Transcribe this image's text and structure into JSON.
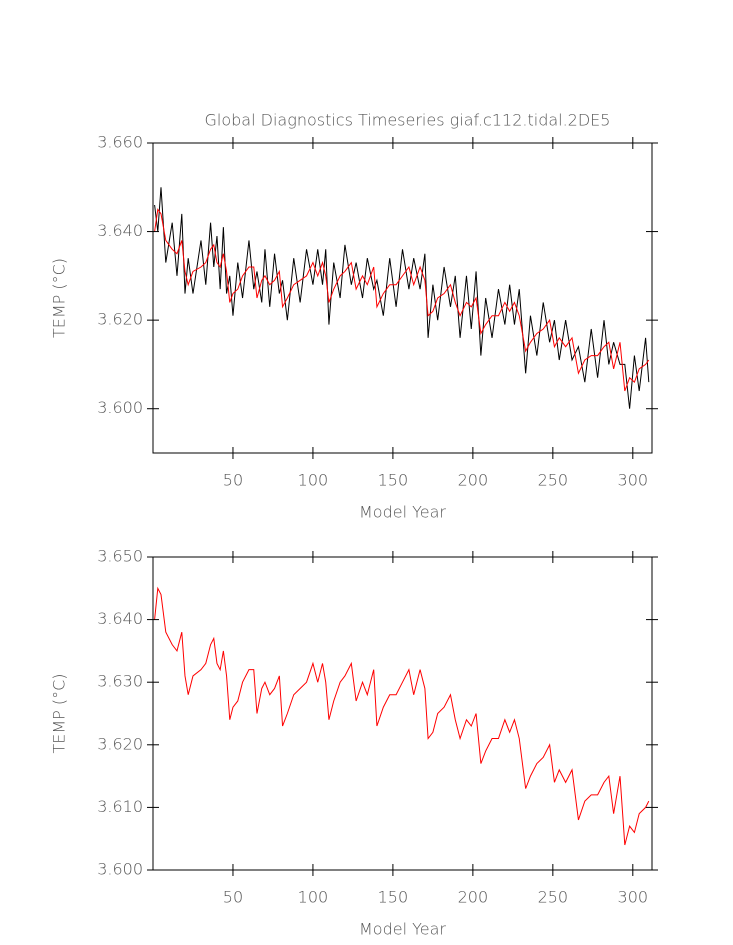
{
  "chart_data": [
    {
      "type": "line",
      "title": "Global Diagnostics Timeseries giaf.c112.tidal.2DE5",
      "x_label": "Model Year",
      "y_label": "TEMP (°C)",
      "xlim": [
        0,
        312
      ],
      "xticks": [
        50,
        100,
        150,
        200,
        250,
        300
      ],
      "ylim": [
        3.59,
        3.66
      ],
      "yticks": [
        {
          "value": 3.6,
          "label": "3.600"
        },
        {
          "value": 3.62,
          "label": "3.620"
        },
        {
          "value": 3.64,
          "label": "3.640"
        },
        {
          "value": 3.66,
          "label": "3.660"
        }
      ],
      "x": [
        1,
        3,
        5,
        8,
        12,
        15,
        18,
        20,
        22,
        25,
        30,
        33,
        36,
        38,
        40,
        42,
        44,
        46,
        48,
        50,
        53,
        56,
        60,
        63,
        65,
        68,
        70,
        73,
        76,
        79,
        81,
        84,
        88,
        92,
        96,
        100,
        103,
        106,
        108,
        110,
        113,
        117,
        120,
        124,
        127,
        131,
        134,
        138,
        140,
        144,
        148,
        152,
        156,
        160,
        163,
        167,
        170,
        172,
        175,
        178,
        182,
        186,
        189,
        192,
        196,
        199,
        202,
        205,
        208,
        212,
        216,
        220,
        223,
        226,
        229,
        233,
        236,
        240,
        244,
        248,
        251,
        254,
        258,
        262,
        266,
        270,
        274,
        278,
        282,
        285,
        288,
        292,
        295,
        298,
        301,
        304,
        308,
        310
      ],
      "series": [
        {
          "color": "#000000",
          "values": [
            3.646,
            3.64,
            3.65,
            3.633,
            3.642,
            3.63,
            3.644,
            3.626,
            3.634,
            3.626,
            3.638,
            3.628,
            3.642,
            3.632,
            3.639,
            3.627,
            3.641,
            3.626,
            3.63,
            3.621,
            3.633,
            3.625,
            3.638,
            3.627,
            3.631,
            3.624,
            3.636,
            3.623,
            3.635,
            3.626,
            3.629,
            3.62,
            3.634,
            3.624,
            3.636,
            3.628,
            3.636,
            3.628,
            3.636,
            3.619,
            3.633,
            3.625,
            3.637,
            3.628,
            3.633,
            3.625,
            3.634,
            3.627,
            3.629,
            3.621,
            3.634,
            3.623,
            3.636,
            3.627,
            3.634,
            3.627,
            3.635,
            3.616,
            3.628,
            3.62,
            3.632,
            3.623,
            3.63,
            3.616,
            3.63,
            3.618,
            3.631,
            3.612,
            3.625,
            3.616,
            3.627,
            3.619,
            3.628,
            3.619,
            3.627,
            3.608,
            3.621,
            3.612,
            3.624,
            3.615,
            3.62,
            3.611,
            3.62,
            3.611,
            3.614,
            3.606,
            3.618,
            3.607,
            3.62,
            3.61,
            3.615,
            3.61,
            3.61,
            3.6,
            3.612,
            3.604,
            3.616,
            3.606
          ]
        },
        {
          "color": "#ff0000",
          "values": [
            3.64,
            3.645,
            3.644,
            3.638,
            3.636,
            3.635,
            3.638,
            3.631,
            3.628,
            3.631,
            3.632,
            3.633,
            3.636,
            3.637,
            3.633,
            3.632,
            3.635,
            3.631,
            3.624,
            3.626,
            3.627,
            3.63,
            3.632,
            3.632,
            3.625,
            3.629,
            3.63,
            3.628,
            3.629,
            3.631,
            3.623,
            3.625,
            3.628,
            3.629,
            3.63,
            3.633,
            3.63,
            3.633,
            3.63,
            3.624,
            3.627,
            3.63,
            3.631,
            3.633,
            3.627,
            3.63,
            3.628,
            3.632,
            3.623,
            3.626,
            3.628,
            3.628,
            3.63,
            3.632,
            3.628,
            3.632,
            3.629,
            3.621,
            3.622,
            3.625,
            3.626,
            3.628,
            3.624,
            3.621,
            3.624,
            3.623,
            3.625,
            3.617,
            3.619,
            3.621,
            3.621,
            3.624,
            3.622,
            3.624,
            3.621,
            3.613,
            3.615,
            3.617,
            3.618,
            3.62,
            3.614,
            3.616,
            3.614,
            3.616,
            3.608,
            3.611,
            3.612,
            3.612,
            3.614,
            3.615,
            3.609,
            3.615,
            3.604,
            3.607,
            3.606,
            3.609,
            3.61,
            3.611
          ]
        }
      ]
    },
    {
      "type": "line",
      "x_label": "Model Year",
      "y_label": "TEMP (°C)",
      "xlim": [
        0,
        312
      ],
      "xticks": [
        50,
        100,
        150,
        200,
        250,
        300
      ],
      "ylim": [
        3.6,
        3.65
      ],
      "yticks": [
        {
          "value": 3.6,
          "label": "3.600"
        },
        {
          "value": 3.61,
          "label": "3.610"
        },
        {
          "value": 3.62,
          "label": "3.620"
        },
        {
          "value": 3.63,
          "label": "3.630"
        },
        {
          "value": 3.64,
          "label": "3.640"
        },
        {
          "value": 3.65,
          "label": "3.650"
        }
      ],
      "x": [
        1,
        3,
        5,
        8,
        12,
        15,
        18,
        20,
        22,
        25,
        30,
        33,
        36,
        38,
        40,
        42,
        44,
        46,
        48,
        50,
        53,
        56,
        60,
        63,
        65,
        68,
        70,
        73,
        76,
        79,
        81,
        84,
        88,
        92,
        96,
        100,
        103,
        106,
        108,
        110,
        113,
        117,
        120,
        124,
        127,
        131,
        134,
        138,
        140,
        144,
        148,
        152,
        156,
        160,
        163,
        167,
        170,
        172,
        175,
        178,
        182,
        186,
        189,
        192,
        196,
        199,
        202,
        205,
        208,
        212,
        216,
        220,
        223,
        226,
        229,
        233,
        236,
        240,
        244,
        248,
        251,
        254,
        258,
        262,
        266,
        270,
        274,
        278,
        282,
        285,
        288,
        292,
        295,
        298,
        301,
        304,
        308,
        310
      ],
      "series": [
        {
          "color": "#ff0000",
          "values": [
            3.64,
            3.645,
            3.644,
            3.638,
            3.636,
            3.635,
            3.638,
            3.631,
            3.628,
            3.631,
            3.632,
            3.633,
            3.636,
            3.637,
            3.633,
            3.632,
            3.635,
            3.631,
            3.624,
            3.626,
            3.627,
            3.63,
            3.632,
            3.632,
            3.625,
            3.629,
            3.63,
            3.628,
            3.629,
            3.631,
            3.623,
            3.625,
            3.628,
            3.629,
            3.63,
            3.633,
            3.63,
            3.633,
            3.63,
            3.624,
            3.627,
            3.63,
            3.631,
            3.633,
            3.627,
            3.63,
            3.628,
            3.632,
            3.623,
            3.626,
            3.628,
            3.628,
            3.63,
            3.632,
            3.628,
            3.632,
            3.629,
            3.621,
            3.622,
            3.625,
            3.626,
            3.628,
            3.624,
            3.621,
            3.624,
            3.623,
            3.625,
            3.617,
            3.619,
            3.621,
            3.621,
            3.624,
            3.622,
            3.624,
            3.621,
            3.613,
            3.615,
            3.617,
            3.618,
            3.62,
            3.614,
            3.616,
            3.614,
            3.616,
            3.608,
            3.611,
            3.612,
            3.612,
            3.614,
            3.615,
            3.609,
            3.615,
            3.604,
            3.607,
            3.606,
            3.609,
            3.61,
            3.611
          ]
        }
      ]
    }
  ]
}
